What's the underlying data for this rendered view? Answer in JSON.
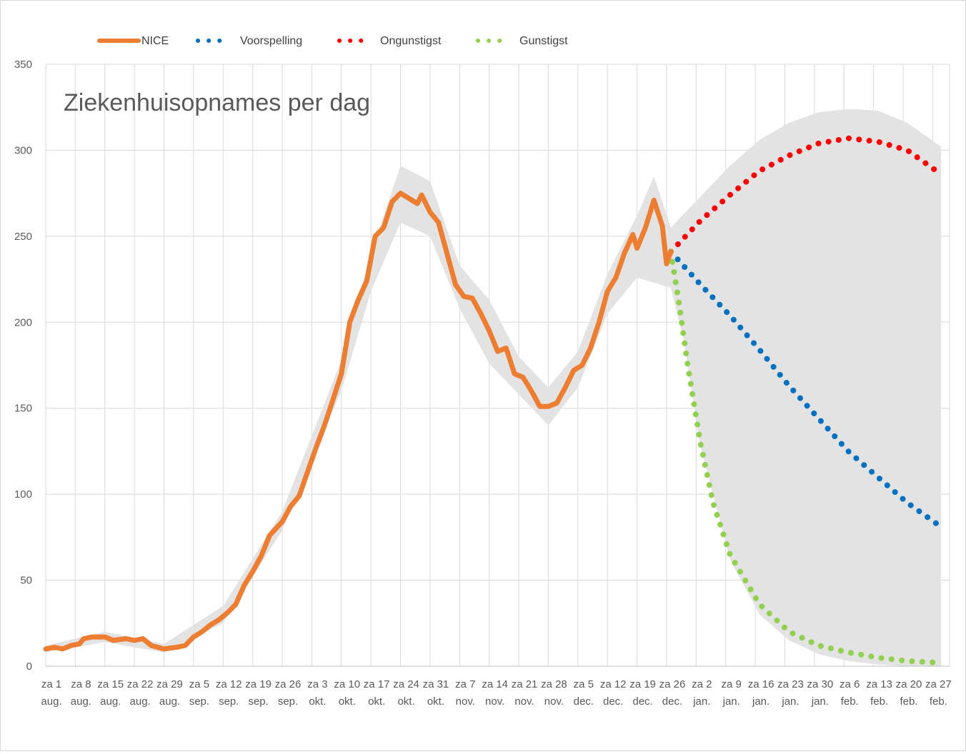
{
  "chart_data": {
    "type": "line",
    "title": "Ziekenhuisopnames per dag",
    "xlabel": "",
    "ylabel": "",
    "ylim": [
      0,
      350
    ],
    "yticks": [
      0,
      50,
      100,
      150,
      200,
      250,
      300,
      350
    ],
    "grid": "vertical and horizontal",
    "legend_position": "top",
    "x_domain": [
      "2020-08-01",
      "2021-03-03"
    ],
    "x_ticks": [
      {
        "line1": "za 1",
        "line2": "aug.",
        "date": "2020-08-01"
      },
      {
        "line1": "za 8",
        "line2": "aug.",
        "date": "2020-08-08"
      },
      {
        "line1": "za 15",
        "line2": "aug.",
        "date": "2020-08-15"
      },
      {
        "line1": "za 22",
        "line2": "aug.",
        "date": "2020-08-22"
      },
      {
        "line1": "za 29",
        "line2": "aug.",
        "date": "2020-08-29"
      },
      {
        "line1": "za 5",
        "line2": "sep.",
        "date": "2020-09-05"
      },
      {
        "line1": "za 12",
        "line2": "sep.",
        "date": "2020-09-12"
      },
      {
        "line1": "za 19",
        "line2": "sep.",
        "date": "2020-09-19"
      },
      {
        "line1": "za 26",
        "line2": "sep.",
        "date": "2020-09-26"
      },
      {
        "line1": "za 3",
        "line2": "okt.",
        "date": "2020-10-03"
      },
      {
        "line1": "za 10",
        "line2": "okt.",
        "date": "2020-10-10"
      },
      {
        "line1": "za 17",
        "line2": "okt.",
        "date": "2020-10-17"
      },
      {
        "line1": "za 24",
        "line2": "okt.",
        "date": "2020-10-24"
      },
      {
        "line1": "za 31",
        "line2": "okt.",
        "date": "2020-10-31"
      },
      {
        "line1": "za 7",
        "line2": "nov.",
        "date": "2020-11-07"
      },
      {
        "line1": "za 14",
        "line2": "nov.",
        "date": "2020-11-14"
      },
      {
        "line1": "za 21",
        "line2": "nov.",
        "date": "2020-11-21"
      },
      {
        "line1": "za 28",
        "line2": "nov.",
        "date": "2020-11-28"
      },
      {
        "line1": "za 5",
        "line2": "dec.",
        "date": "2020-12-05"
      },
      {
        "line1": "za 12",
        "line2": "dec.",
        "date": "2020-12-12"
      },
      {
        "line1": "za 19",
        "line2": "dec.",
        "date": "2020-12-19"
      },
      {
        "line1": "za 26",
        "line2": "dec.",
        "date": "2020-12-26"
      },
      {
        "line1": "za 2",
        "line2": "jan.",
        "date": "2021-01-02"
      },
      {
        "line1": "za 9",
        "line2": "jan.",
        "date": "2021-01-09"
      },
      {
        "line1": "za 16",
        "line2": "jan.",
        "date": "2021-01-16"
      },
      {
        "line1": "za 23",
        "line2": "jan.",
        "date": "2021-01-23"
      },
      {
        "line1": "za 30",
        "line2": "jan.",
        "date": "2021-01-30"
      },
      {
        "line1": "za 6",
        "line2": "feb.",
        "date": "2021-02-06"
      },
      {
        "line1": "za 13",
        "line2": "feb.",
        "date": "2021-02-13"
      },
      {
        "line1": "za 20",
        "line2": "feb.",
        "date": "2021-02-20"
      },
      {
        "line1": "za 27",
        "line2": "feb.",
        "date": "2021-02-27"
      }
    ],
    "series": [
      {
        "name": "NICE",
        "style": "solid",
        "color": "#ED7D31",
        "points": [
          {
            "x": "2020-08-01",
            "y": 10
          },
          {
            "x": "2020-08-03",
            "y": 11
          },
          {
            "x": "2020-08-05",
            "y": 10
          },
          {
            "x": "2020-08-07",
            "y": 12
          },
          {
            "x": "2020-08-09",
            "y": 13
          },
          {
            "x": "2020-08-10",
            "y": 16
          },
          {
            "x": "2020-08-12",
            "y": 17
          },
          {
            "x": "2020-08-15",
            "y": 17
          },
          {
            "x": "2020-08-17",
            "y": 15
          },
          {
            "x": "2020-08-20",
            "y": 16
          },
          {
            "x": "2020-08-22",
            "y": 15
          },
          {
            "x": "2020-08-24",
            "y": 16
          },
          {
            "x": "2020-08-26",
            "y": 12
          },
          {
            "x": "2020-08-29",
            "y": 10
          },
          {
            "x": "2020-09-01",
            "y": 11
          },
          {
            "x": "2020-09-03",
            "y": 12
          },
          {
            "x": "2020-09-05",
            "y": 17
          },
          {
            "x": "2020-09-07",
            "y": 20
          },
          {
            "x": "2020-09-09",
            "y": 24
          },
          {
            "x": "2020-09-11",
            "y": 27
          },
          {
            "x": "2020-09-13",
            "y": 31
          },
          {
            "x": "2020-09-15",
            "y": 36
          },
          {
            "x": "2020-09-17",
            "y": 47
          },
          {
            "x": "2020-09-19",
            "y": 55
          },
          {
            "x": "2020-09-21",
            "y": 64
          },
          {
            "x": "2020-09-23",
            "y": 76
          },
          {
            "x": "2020-09-26",
            "y": 84
          },
          {
            "x": "2020-09-28",
            "y": 93
          },
          {
            "x": "2020-09-30",
            "y": 99
          },
          {
            "x": "2020-10-02",
            "y": 113
          },
          {
            "x": "2020-10-04",
            "y": 127
          },
          {
            "x": "2020-10-06",
            "y": 140
          },
          {
            "x": "2020-10-08",
            "y": 155
          },
          {
            "x": "2020-10-10",
            "y": 170
          },
          {
            "x": "2020-10-12",
            "y": 200
          },
          {
            "x": "2020-10-14",
            "y": 213
          },
          {
            "x": "2020-10-16",
            "y": 224
          },
          {
            "x": "2020-10-18",
            "y": 250
          },
          {
            "x": "2020-10-20",
            "y": 255
          },
          {
            "x": "2020-10-22",
            "y": 270
          },
          {
            "x": "2020-10-24",
            "y": 275
          },
          {
            "x": "2020-10-26",
            "y": 272
          },
          {
            "x": "2020-10-28",
            "y": 269
          },
          {
            "x": "2020-10-29",
            "y": 274
          },
          {
            "x": "2020-10-31",
            "y": 264
          },
          {
            "x": "2020-11-02",
            "y": 258
          },
          {
            "x": "2020-11-04",
            "y": 240
          },
          {
            "x": "2020-11-06",
            "y": 222
          },
          {
            "x": "2020-11-08",
            "y": 215
          },
          {
            "x": "2020-11-10",
            "y": 214
          },
          {
            "x": "2020-11-12",
            "y": 205
          },
          {
            "x": "2020-11-14",
            "y": 195
          },
          {
            "x": "2020-11-16",
            "y": 183
          },
          {
            "x": "2020-11-18",
            "y": 185
          },
          {
            "x": "2020-11-20",
            "y": 170
          },
          {
            "x": "2020-11-22",
            "y": 168
          },
          {
            "x": "2020-11-24",
            "y": 160
          },
          {
            "x": "2020-11-26",
            "y": 151
          },
          {
            "x": "2020-11-28",
            "y": 151
          },
          {
            "x": "2020-11-30",
            "y": 153
          },
          {
            "x": "2020-12-02",
            "y": 162
          },
          {
            "x": "2020-12-04",
            "y": 172
          },
          {
            "x": "2020-12-06",
            "y": 175
          },
          {
            "x": "2020-12-08",
            "y": 185
          },
          {
            "x": "2020-12-10",
            "y": 200
          },
          {
            "x": "2020-12-12",
            "y": 218
          },
          {
            "x": "2020-12-14",
            "y": 226
          },
          {
            "x": "2020-12-16",
            "y": 240
          },
          {
            "x": "2020-12-18",
            "y": 251
          },
          {
            "x": "2020-12-19",
            "y": 243
          },
          {
            "x": "2020-12-21",
            "y": 255
          },
          {
            "x": "2020-12-23",
            "y": 271
          },
          {
            "x": "2020-12-25",
            "y": 256
          },
          {
            "x": "2020-12-26",
            "y": 234
          },
          {
            "x": "2020-12-27",
            "y": 241
          }
        ]
      },
      {
        "name": "Voorspelling",
        "style": "dotted",
        "color": "#0070C0",
        "points": [
          {
            "x": "2020-12-27",
            "y": 241
          },
          {
            "x": "2021-01-03",
            "y": 222
          },
          {
            "x": "2021-01-10",
            "y": 204
          },
          {
            "x": "2021-01-17",
            "y": 184
          },
          {
            "x": "2021-01-24",
            "y": 163
          },
          {
            "x": "2021-01-31",
            "y": 144
          },
          {
            "x": "2021-02-07",
            "y": 125
          },
          {
            "x": "2021-02-14",
            "y": 110
          },
          {
            "x": "2021-02-21",
            "y": 95
          },
          {
            "x": "2021-03-01",
            "y": 81
          }
        ]
      },
      {
        "name": "Ongunstigst",
        "style": "dotted",
        "color": "#FF0000",
        "points": [
          {
            "x": "2020-12-27",
            "y": 241
          },
          {
            "x": "2021-01-03",
            "y": 259
          },
          {
            "x": "2021-01-10",
            "y": 274
          },
          {
            "x": "2021-01-17",
            "y": 288
          },
          {
            "x": "2021-01-24",
            "y": 297
          },
          {
            "x": "2021-01-31",
            "y": 304
          },
          {
            "x": "2021-02-07",
            "y": 307
          },
          {
            "x": "2021-02-14",
            "y": 305
          },
          {
            "x": "2021-02-21",
            "y": 300
          },
          {
            "x": "2021-03-01",
            "y": 286
          }
        ]
      },
      {
        "name": "Gunstigst",
        "style": "dotted",
        "color": "#92D050",
        "points": [
          {
            "x": "2020-12-27",
            "y": 241
          },
          {
            "x": "2020-12-29",
            "y": 210
          },
          {
            "x": "2020-12-31",
            "y": 175
          },
          {
            "x": "2021-01-03",
            "y": 130
          },
          {
            "x": "2021-01-06",
            "y": 95
          },
          {
            "x": "2021-01-10",
            "y": 65
          },
          {
            "x": "2021-01-17",
            "y": 36
          },
          {
            "x": "2021-01-24",
            "y": 20
          },
          {
            "x": "2021-01-31",
            "y": 12
          },
          {
            "x": "2021-02-07",
            "y": 8
          },
          {
            "x": "2021-02-14",
            "y": 5
          },
          {
            "x": "2021-02-21",
            "y": 3
          },
          {
            "x": "2021-03-01",
            "y": 2
          }
        ]
      }
    ],
    "band": {
      "color": "#E3E3E3",
      "upper": [
        {
          "x": "2020-08-01",
          "y": 12
        },
        {
          "x": "2020-08-15",
          "y": 20
        },
        {
          "x": "2020-08-29",
          "y": 13
        },
        {
          "x": "2020-09-12",
          "y": 35
        },
        {
          "x": "2020-09-26",
          "y": 90
        },
        {
          "x": "2020-10-10",
          "y": 178
        },
        {
          "x": "2020-10-17",
          "y": 240
        },
        {
          "x": "2020-10-24",
          "y": 291
        },
        {
          "x": "2020-10-31",
          "y": 282
        },
        {
          "x": "2020-11-07",
          "y": 233
        },
        {
          "x": "2020-11-14",
          "y": 213
        },
        {
          "x": "2020-11-21",
          "y": 180
        },
        {
          "x": "2020-11-28",
          "y": 162
        },
        {
          "x": "2020-12-05",
          "y": 183
        },
        {
          "x": "2020-12-12",
          "y": 228
        },
        {
          "x": "2020-12-19",
          "y": 262
        },
        {
          "x": "2020-12-23",
          "y": 285
        },
        {
          "x": "2020-12-27",
          "y": 255
        },
        {
          "x": "2021-01-03",
          "y": 273
        },
        {
          "x": "2021-01-10",
          "y": 291
        },
        {
          "x": "2021-01-17",
          "y": 306
        },
        {
          "x": "2021-01-24",
          "y": 316
        },
        {
          "x": "2021-01-31",
          "y": 322
        },
        {
          "x": "2021-02-07",
          "y": 324
        },
        {
          "x": "2021-02-14",
          "y": 323
        },
        {
          "x": "2021-02-21",
          "y": 316
        },
        {
          "x": "2021-03-01",
          "y": 302
        }
      ],
      "lower": [
        {
          "x": "2021-03-01",
          "y": 0
        },
        {
          "x": "2021-02-21",
          "y": 0
        },
        {
          "x": "2021-02-14",
          "y": 1
        },
        {
          "x": "2021-02-07",
          "y": 3
        },
        {
          "x": "2021-01-31",
          "y": 7
        },
        {
          "x": "2021-01-24",
          "y": 15
        },
        {
          "x": "2021-01-17",
          "y": 30
        },
        {
          "x": "2021-01-10",
          "y": 62
        },
        {
          "x": "2021-01-03",
          "y": 128
        },
        {
          "x": "2020-12-30",
          "y": 190
        },
        {
          "x": "2020-12-27",
          "y": 220
        },
        {
          "x": "2020-12-19",
          "y": 226
        },
        {
          "x": "2020-12-12",
          "y": 205
        },
        {
          "x": "2020-12-05",
          "y": 162
        },
        {
          "x": "2020-11-28",
          "y": 140
        },
        {
          "x": "2020-11-21",
          "y": 158
        },
        {
          "x": "2020-11-14",
          "y": 176
        },
        {
          "x": "2020-11-07",
          "y": 208
        },
        {
          "x": "2020-10-31",
          "y": 250
        },
        {
          "x": "2020-10-24",
          "y": 258
        },
        {
          "x": "2020-10-17",
          "y": 218
        },
        {
          "x": "2020-10-10",
          "y": 160
        },
        {
          "x": "2020-09-26",
          "y": 79
        },
        {
          "x": "2020-09-12",
          "y": 25
        },
        {
          "x": "2020-08-29",
          "y": 8
        },
        {
          "x": "2020-08-15",
          "y": 14
        },
        {
          "x": "2020-08-01",
          "y": 8
        }
      ]
    }
  }
}
